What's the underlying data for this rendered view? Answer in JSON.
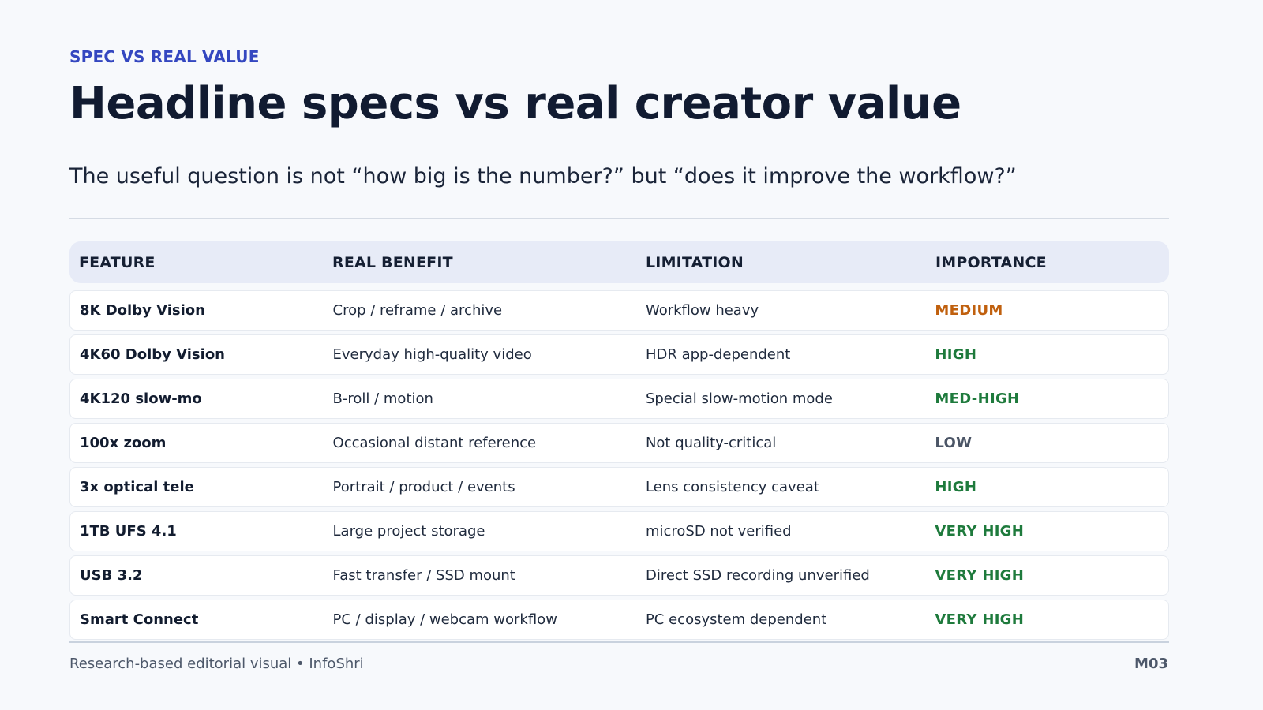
{
  "header": {
    "eyebrow": "SPEC VS REAL VALUE",
    "title": "Headline specs vs real creator value",
    "subtitle": "The useful question is not “how big is the number?” but “does it improve the workflow?”"
  },
  "table": {
    "columns": [
      "FEATURE",
      "REAL BENEFIT",
      "LIMITATION",
      "IMPORTANCE"
    ],
    "rows": [
      {
        "feature": "8K Dolby Vision",
        "benefit": "Crop / reframe / archive",
        "limitation": "Workflow heavy",
        "importance": "MEDIUM",
        "importance_color": "#c0600e"
      },
      {
        "feature": "4K60 Dolby Vision",
        "benefit": "Everyday high-quality video",
        "limitation": "HDR app-dependent",
        "importance": "HIGH",
        "importance_color": "#1e7a3c"
      },
      {
        "feature": "4K120 slow-mo",
        "benefit": "B-roll / motion",
        "limitation": "Special slow-motion mode",
        "importance": "MED-HIGH",
        "importance_color": "#1e7a3c"
      },
      {
        "feature": "100x zoom",
        "benefit": "Occasional distant reference",
        "limitation": "Not quality-critical",
        "importance": "LOW",
        "importance_color": "#4b5566"
      },
      {
        "feature": "3x optical tele",
        "benefit": "Portrait / product / events",
        "limitation": "Lens consistency caveat",
        "importance": "HIGH",
        "importance_color": "#1e7a3c"
      },
      {
        "feature": "1TB UFS 4.1",
        "benefit": "Large project storage",
        "limitation": "microSD not verified",
        "importance": "VERY HIGH",
        "importance_color": "#1e7a3c"
      },
      {
        "feature": "USB 3.2",
        "benefit": "Fast transfer / SSD mount",
        "limitation": "Direct SSD recording unverified",
        "importance": "VERY HIGH",
        "importance_color": "#1e7a3c"
      },
      {
        "feature": "Smart Connect",
        "benefit": "PC / display / webcam workflow",
        "limitation": "PC ecosystem dependent",
        "importance": "VERY HIGH",
        "importance_color": "#1e7a3c"
      }
    ]
  },
  "footer": {
    "credit": "Research-based editorial visual • InfoShri",
    "code": "M03"
  }
}
